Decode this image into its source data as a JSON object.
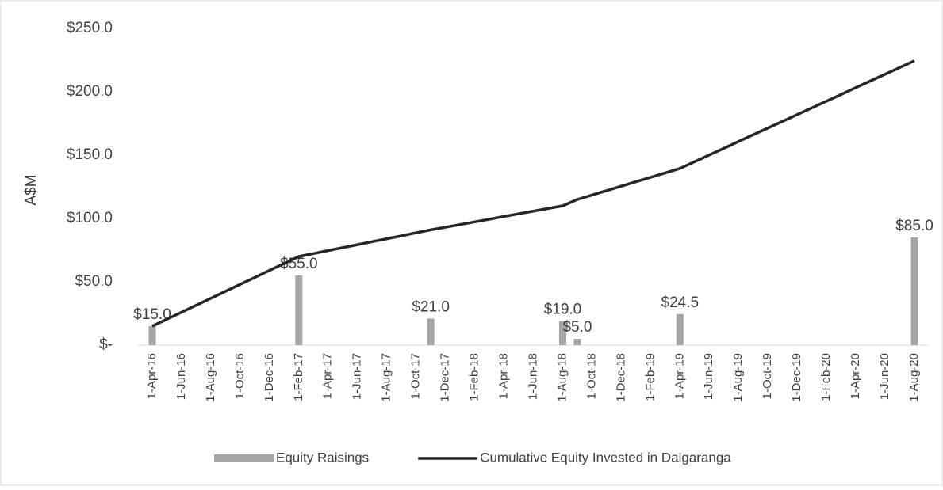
{
  "chart_data": {
    "type": "bar-line",
    "y_label": "A$M",
    "categories": [
      "1-Apr-16",
      null,
      "1-Jun-16",
      null,
      "1-Aug-16",
      null,
      "1-Oct-16",
      null,
      "1-Dec-16",
      null,
      "1-Feb-17",
      null,
      "1-Apr-17",
      null,
      "1-Jun-17",
      null,
      "1-Aug-17",
      null,
      "1-Oct-17",
      null,
      "1-Dec-17",
      null,
      "1-Feb-18",
      null,
      "1-Apr-18",
      null,
      "1-Jun-18",
      null,
      "1-Aug-18",
      null,
      "1-Oct-18",
      null,
      "1-Dec-18",
      null,
      "1-Feb-19",
      null,
      "1-Apr-19",
      null,
      "1-Jun-19",
      null,
      "1-Aug-19",
      null,
      "1-Oct-19",
      null,
      "1-Dec-19",
      null,
      "1-Feb-20",
      null,
      "1-Apr-20",
      null,
      "1-Jun-20",
      null,
      "1-Aug-20"
    ],
    "series": [
      {
        "name": "Equity Raisings",
        "kind": "bar",
        "color": "#a5a5a5",
        "values": [
          15,
          null,
          null,
          null,
          null,
          null,
          null,
          null,
          null,
          null,
          55,
          null,
          null,
          null,
          null,
          null,
          null,
          null,
          null,
          21,
          null,
          null,
          null,
          null,
          null,
          null,
          null,
          null,
          19,
          5,
          null,
          null,
          null,
          null,
          null,
          null,
          24.5,
          null,
          null,
          null,
          null,
          null,
          null,
          null,
          null,
          null,
          null,
          null,
          null,
          null,
          null,
          null,
          85
        ],
        "value_labels": [
          "$15.0",
          null,
          null,
          null,
          null,
          null,
          null,
          null,
          null,
          null,
          "$55.0",
          null,
          null,
          null,
          null,
          null,
          null,
          null,
          null,
          "$21.0",
          null,
          null,
          null,
          null,
          null,
          null,
          null,
          null,
          "$19.0",
          "$5.0",
          null,
          null,
          null,
          null,
          null,
          null,
          "$24.5",
          null,
          null,
          null,
          null,
          null,
          null,
          null,
          null,
          null,
          null,
          null,
          null,
          null,
          null,
          null,
          "$85.0"
        ]
      },
      {
        "name": "Cumulative Equity Invested in Dalgaranga",
        "kind": "line",
        "color": "#262626",
        "values": [
          15,
          20.5,
          26,
          31.5,
          37,
          42.5,
          48,
          53.5,
          59,
          64.5,
          70,
          72.3,
          74.7,
          77,
          79.3,
          81.7,
          84,
          86.3,
          88.7,
          91,
          93.1,
          95.2,
          97.3,
          99.4,
          101.6,
          103.7,
          105.8,
          107.9,
          110,
          115,
          118.5,
          122,
          125.5,
          129,
          132.5,
          136,
          139.5,
          144.8,
          150.1,
          155.4,
          160.8,
          166.1,
          171.4,
          176.7,
          182,
          187.3,
          192.6,
          197.9,
          203.3,
          208.6,
          213.9,
          219.2,
          224.5
        ]
      }
    ],
    "ylim": [
      0,
      250
    ],
    "yticks": [
      {
        "value": 0,
        "label": "$-"
      },
      {
        "value": 50,
        "label": "$50.0"
      },
      {
        "value": 100,
        "label": "$100.0"
      },
      {
        "value": 150,
        "label": "$150.0"
      },
      {
        "value": 200,
        "label": "$200.0"
      },
      {
        "value": 250,
        "label": "$250.0"
      }
    ],
    "grid": false,
    "legend": "bottom"
  }
}
